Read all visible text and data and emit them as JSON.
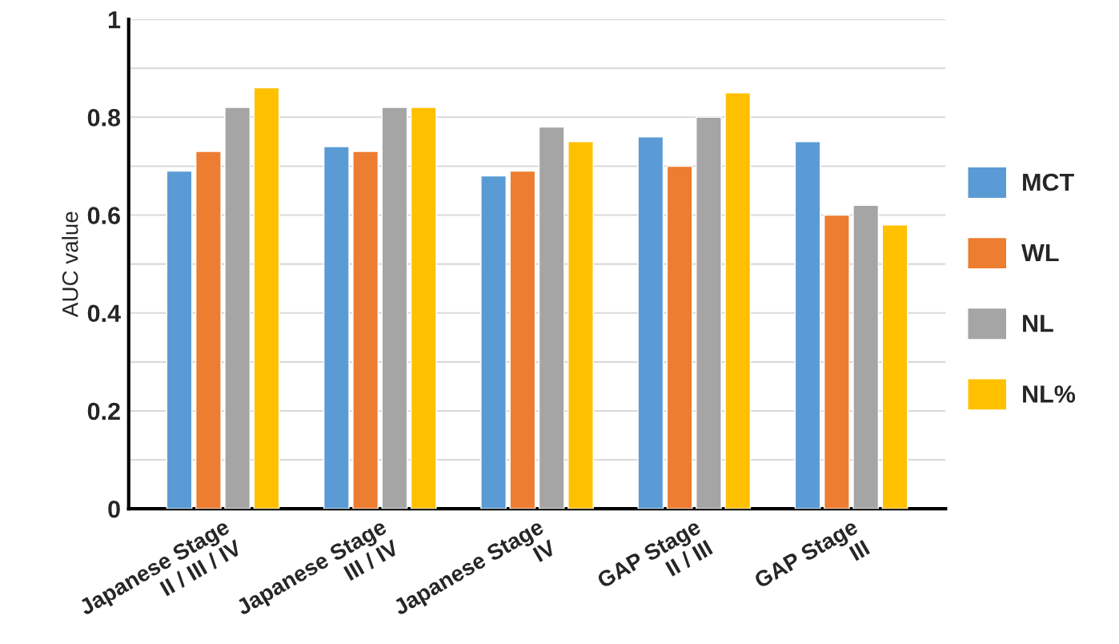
{
  "chart_data": {
    "type": "bar",
    "ylabel": "AUC value",
    "categories": [
      "Japanese Stage\nII / III / IV",
      "Japanese Stage\nIII / IV",
      "Japanese Stage\nIV",
      "GAP Stage\nII / III",
      "GAP Stage\nIII"
    ],
    "series": [
      {
        "name": "MCT",
        "color": "#5b9bd5",
        "values": [
          0.69,
          0.74,
          0.68,
          0.76,
          0.75
        ]
      },
      {
        "name": "WL",
        "color": "#ed7d31",
        "values": [
          0.73,
          0.73,
          0.69,
          0.7,
          0.6
        ]
      },
      {
        "name": "NL",
        "color": "#a5a5a5",
        "values": [
          0.82,
          0.82,
          0.78,
          0.8,
          0.62
        ]
      },
      {
        "name": "NL%",
        "color": "#ffc000",
        "values": [
          0.86,
          0.82,
          0.75,
          0.85,
          0.58
        ]
      }
    ],
    "ylim": [
      0,
      1
    ],
    "yticks": [
      0,
      {
        "value": 0.1,
        "label": null
      },
      0.2,
      {
        "value": 0.3,
        "label": null
      },
      0.4,
      {
        "value": 0.5,
        "label": null
      },
      0.6,
      {
        "value": 0.7,
        "label": null
      },
      0.8,
      {
        "value": 0.9,
        "label": null
      },
      1
    ],
    "grid": "y",
    "legend": "right"
  }
}
